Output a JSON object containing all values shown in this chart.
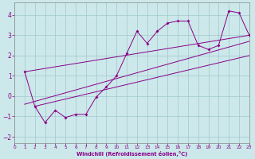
{
  "xlabel": "Windchill (Refroidissement éolien,°C)",
  "bg_color": "#cce8ea",
  "grid_color": "#a0c8cc",
  "line_color": "#880088",
  "spine_color": "#888888",
  "xlim": [
    0,
    23
  ],
  "ylim": [
    -2.3,
    4.6
  ],
  "xticks": [
    0,
    1,
    2,
    3,
    4,
    5,
    6,
    7,
    8,
    9,
    10,
    11,
    12,
    13,
    14,
    15,
    16,
    17,
    18,
    19,
    20,
    21,
    22,
    23
  ],
  "yticks": [
    -2,
    -1,
    0,
    1,
    2,
    3,
    4
  ],
  "series": [
    [
      1,
      1.2
    ],
    [
      2,
      -0.5
    ],
    [
      3,
      -1.3
    ],
    [
      4,
      -0.7
    ],
    [
      5,
      -1.05
    ],
    [
      6,
      -0.9
    ],
    [
      7,
      -0.9
    ],
    [
      8,
      -0.05
    ],
    [
      9,
      0.45
    ],
    [
      10,
      1.0
    ],
    [
      11,
      2.1
    ],
    [
      12,
      3.2
    ],
    [
      13,
      2.6
    ],
    [
      14,
      3.2
    ],
    [
      15,
      3.6
    ],
    [
      16,
      3.7
    ],
    [
      17,
      3.7
    ],
    [
      18,
      2.5
    ],
    [
      19,
      2.3
    ],
    [
      20,
      2.5
    ],
    [
      21,
      4.2
    ],
    [
      22,
      4.1
    ],
    [
      23,
      3.0
    ]
  ],
  "straight_lines": [
    {
      "x": [
        1,
        23
      ],
      "y": [
        1.2,
        3.0
      ]
    },
    {
      "x": [
        1,
        23
      ],
      "y": [
        -0.4,
        2.7
      ]
    },
    {
      "x": [
        2,
        23
      ],
      "y": [
        -0.5,
        2.0
      ]
    }
  ]
}
